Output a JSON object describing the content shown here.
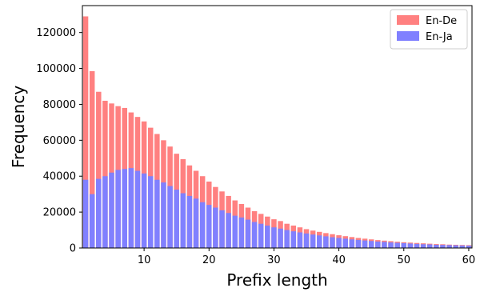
{
  "chart_data": {
    "type": "bar",
    "xlabel": "Prefix length",
    "ylabel": "Frequency",
    "xlim": [
      1,
      60
    ],
    "ylim": [
      0,
      135000
    ],
    "xticks": [
      10,
      20,
      30,
      40,
      50,
      60
    ],
    "yticks": [
      0,
      20000,
      40000,
      60000,
      80000,
      100000,
      120000
    ],
    "legend_position": "top-right",
    "x": [
      1,
      2,
      3,
      4,
      5,
      6,
      7,
      8,
      9,
      10,
      11,
      12,
      13,
      14,
      15,
      16,
      17,
      18,
      19,
      20,
      21,
      22,
      23,
      24,
      25,
      26,
      27,
      28,
      29,
      30,
      31,
      32,
      33,
      34,
      35,
      36,
      37,
      38,
      39,
      40,
      41,
      42,
      43,
      44,
      45,
      46,
      47,
      48,
      49,
      50,
      51,
      52,
      53,
      54,
      55,
      56,
      57,
      58,
      59,
      60
    ],
    "series": [
      {
        "name": "En-De",
        "color": "#ff8080",
        "values": [
          129000,
          98500,
          87000,
          82000,
          80500,
          79000,
          78000,
          75500,
          73000,
          70500,
          67000,
          63500,
          60000,
          56500,
          52500,
          49500,
          46000,
          43000,
          40000,
          37000,
          34000,
          31500,
          29000,
          26500,
          24500,
          22500,
          20500,
          19000,
          17500,
          16000,
          15000,
          13500,
          12500,
          11500,
          10500,
          9700,
          9000,
          8300,
          7700,
          7100,
          6600,
          6100,
          5600,
          5200,
          4800,
          4400,
          4100,
          3800,
          3500,
          3200,
          3000,
          2800,
          2600,
          2400,
          2200,
          2100,
          1900,
          1800,
          1700,
          1600
        ]
      },
      {
        "name": "En-Ja",
        "color": "#8080ff",
        "values": [
          38000,
          30000,
          38500,
          40000,
          42000,
          43500,
          44000,
          44500,
          43000,
          41500,
          40000,
          38000,
          36500,
          34500,
          32500,
          30500,
          29000,
          27500,
          25500,
          24000,
          22500,
          21000,
          19500,
          18000,
          17000,
          15800,
          14500,
          13500,
          12500,
          11500,
          10800,
          10000,
          9300,
          8700,
          8100,
          7500,
          7000,
          6500,
          6000,
          5600,
          5200,
          4800,
          4500,
          4200,
          3900,
          3600,
          3400,
          3100,
          2900,
          2700,
          2500,
          2300,
          2100,
          2000,
          1800,
          1700,
          1600,
          1500,
          1400,
          1300
        ]
      }
    ]
  }
}
